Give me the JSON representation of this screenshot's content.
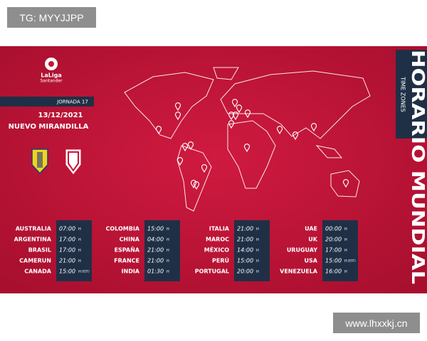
{
  "watermark_top": "TG: MYYJJPP",
  "watermark_bottom": "www.lhxxkj.cn",
  "logo": {
    "brand": "LaLiga",
    "sponsor": "Santander"
  },
  "match": {
    "round": "JORNADA 17",
    "date": "13/12/2021",
    "venue": "NUEVO MIRANDILLA"
  },
  "side": {
    "title": "HORARIO MUNDIAL",
    "subtitle": "TIME ZONES"
  },
  "schedule": [
    [
      {
        "country": "AUSTRALIA",
        "time": "07:00",
        "unit": "H"
      },
      {
        "country": "ARGENTINA",
        "time": "17:00",
        "unit": "H"
      },
      {
        "country": "BRASIL",
        "time": "17:00",
        "unit": "H"
      },
      {
        "country": "CAMERUN",
        "time": "21:00",
        "unit": "H"
      },
      {
        "country": "CANADA",
        "time": "15:00",
        "unit": "H",
        "zone": "(EST)"
      }
    ],
    [
      {
        "country": "COLOMBIA",
        "time": "15:00",
        "unit": "H"
      },
      {
        "country": "CHINA",
        "time": "04:00",
        "unit": "H"
      },
      {
        "country": "ESPAÑA",
        "time": "21:00",
        "unit": "H"
      },
      {
        "country": "FRANCE",
        "time": "21:00",
        "unit": "H"
      },
      {
        "country": "INDIA",
        "time": "01:30",
        "unit": "H"
      }
    ],
    [
      {
        "country": "ITALIA",
        "time": "21:00",
        "unit": "H"
      },
      {
        "country": "MAROC",
        "time": "21:00",
        "unit": "H"
      },
      {
        "country": "MÉXICO",
        "time": "14:00",
        "unit": "H"
      },
      {
        "country": "PERÚ",
        "time": "15:00",
        "unit": "H"
      },
      {
        "country": "PORTUGAL",
        "time": "20:00",
        "unit": "H"
      }
    ],
    [
      {
        "country": "UAE",
        "time": "00:00",
        "unit": "H"
      },
      {
        "country": "UK",
        "time": "20:00",
        "unit": "H"
      },
      {
        "country": "URUGUAY",
        "time": "17:00",
        "unit": "H"
      },
      {
        "country": "USA",
        "time": "15:00",
        "unit": "H",
        "zone": "(EST)"
      },
      {
        "country": "VENEZUELA",
        "time": "16:00",
        "unit": "H"
      }
    ]
  ]
}
